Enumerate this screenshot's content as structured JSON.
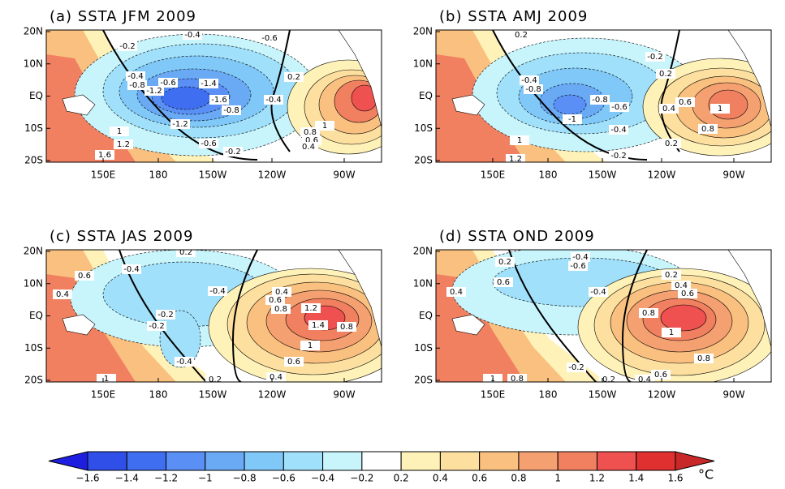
{
  "panels": [
    {
      "title": "(a) SSTA JFM 2009",
      "contour_labels": [
        "-0.4",
        "-0.6",
        "-0.2",
        "-0.4",
        "-0.8",
        "-1.2",
        "-0.6",
        "-1.4",
        "-1.6",
        "-0.8",
        "-1.2",
        "-0.4",
        "-0.6",
        "-0.2",
        "0.2",
        "1",
        "0.8",
        "0.6",
        "0.4",
        "1.2",
        "1",
        "1.6"
      ]
    },
    {
      "title": "(b) SSTA AMJ 2009",
      "contour_labels": [
        "0.2",
        "-0.2",
        "-0.4",
        "-0.8",
        "0.2",
        "-0.8",
        "-0.6",
        "0.6",
        "0.4",
        "1",
        "-1",
        "-0.4",
        "0.8",
        "0.2",
        "-0.2",
        "1",
        "1.2"
      ]
    },
    {
      "title": "(c) SSTA JAS 2009",
      "contour_labels": [
        "0.2",
        "-0.4",
        "0.6",
        "0.4",
        "-0.4",
        "-0.2",
        "-0.2",
        "0.4",
        "0.6",
        "0.8",
        "1.2",
        "1.4",
        "0.8",
        "1",
        "-0.4",
        "0.6",
        "0.4",
        "1",
        "0.2"
      ]
    },
    {
      "title": "(d) SSTA OND 2009",
      "contour_labels": [
        "0.2",
        "-0.4",
        "-0.6",
        "0.4",
        "0.6",
        "-0.4",
        "0.2",
        "0.4",
        "0.6",
        "0.8",
        "1",
        "0.8",
        "0.6",
        "0.4",
        "0.2",
        "-0.2",
        "1",
        "0.8"
      ]
    }
  ],
  "lat_labels": [
    "20N",
    "10N",
    "EQ",
    "10S",
    "20S"
  ],
  "lon_labels": [
    "150E",
    "180",
    "150W",
    "120W",
    "90W"
  ],
  "colorbar": {
    "labels": [
      "−1.6",
      "−1.4",
      "−1.2",
      "−1",
      "−0.8",
      "−0.6",
      "−0.4",
      "−0.2",
      "0.2",
      "0.4",
      "0.6",
      "0.8",
      "1",
      "1.2",
      "1.4",
      "1.6"
    ],
    "colors": [
      "#1e1ee0",
      "#2f4fe8",
      "#3f6ff0",
      "#5a8ff5",
      "#6aaaf5",
      "#80c8f8",
      "#a0e0fa",
      "#c8f4fc",
      "#ffffff",
      "#fff2b8",
      "#fde0a0",
      "#fac080",
      "#f5a070",
      "#f08060",
      "#ef5050",
      "#e03030",
      "#c82828"
    ],
    "unit": "°C"
  }
}
